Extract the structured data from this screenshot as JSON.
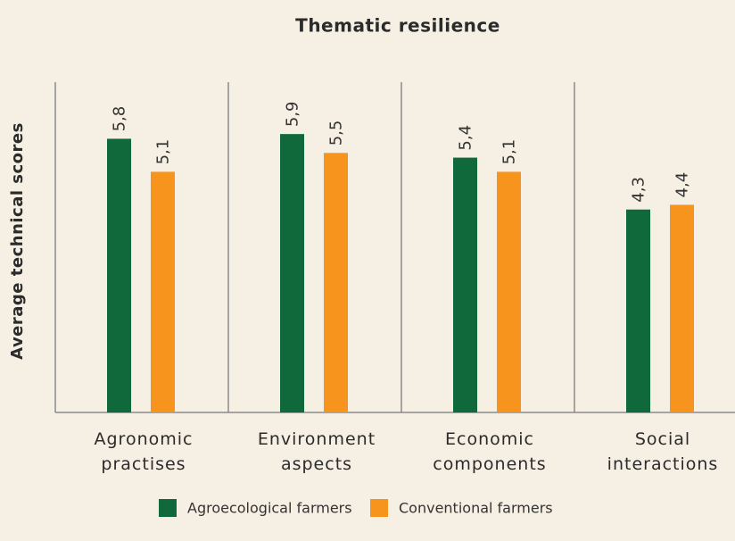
{
  "chart_data": {
    "type": "bar",
    "title": "Thematic resilience",
    "y_label": "Average technical scores",
    "categories": [
      "Agronomic practises",
      "Environment aspects",
      "Economic components",
      "Social interactions"
    ],
    "series": [
      {
        "name": "Agroecological farmers",
        "color": "#10693a",
        "values": [
          5.8,
          5.9,
          5.4,
          4.3
        ],
        "value_labels": [
          "5,8",
          "5,9",
          "5,4",
          "4,3"
        ]
      },
      {
        "name": "Conventional farmers",
        "color": "#f7941d",
        "values": [
          5.1,
          5.5,
          5.1,
          4.4
        ],
        "value_labels": [
          "5,1",
          "5,5",
          "5,1",
          "4,4"
        ]
      }
    ],
    "ylim": [
      0,
      7
    ]
  }
}
